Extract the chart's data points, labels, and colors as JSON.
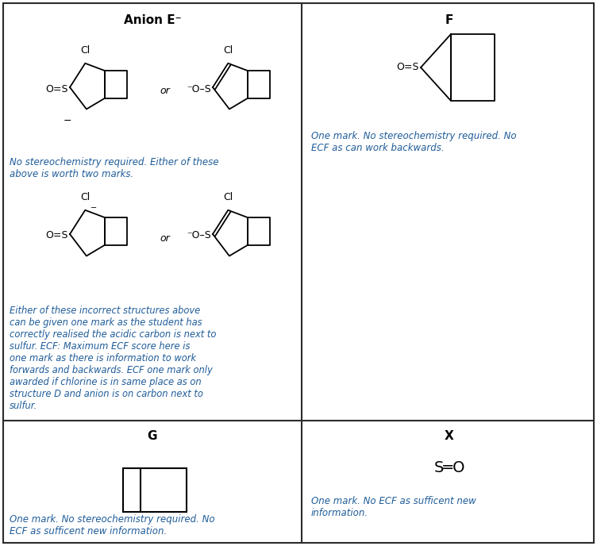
{
  "title_anion": "Anion E⁻",
  "title_F": "F",
  "title_G": "G",
  "title_X": "X",
  "text_color_blue": "#1F5C99",
  "text_color_black": "#000000",
  "bg_color": "#ffffff",
  "border_color": "#2b2b2b",
  "anion_note1": "No stereochemistry required. Either of these\nabove is worth two marks.",
  "anion_note2": "Either of these incorrect structures above\ncan be given one mark as the student has\ncorrectly realised the acidic carbon is next to\nsulfur. ECF: Maximum ECF score here is\none mark as there is information to work\nforwards and backwards. ECF one mark only\nawarded if chlorine is in same place as on\nstructure D and anion is on carbon next to\nsulfur.",
  "F_note": "One mark. No stereochemistry required. No\nECF as can work backwards.",
  "G_note": "One mark. No stereochemistry required. No\nECF as sufficent new information.",
  "X_note": "One mark. No ECF as sufficent new\ninformation."
}
